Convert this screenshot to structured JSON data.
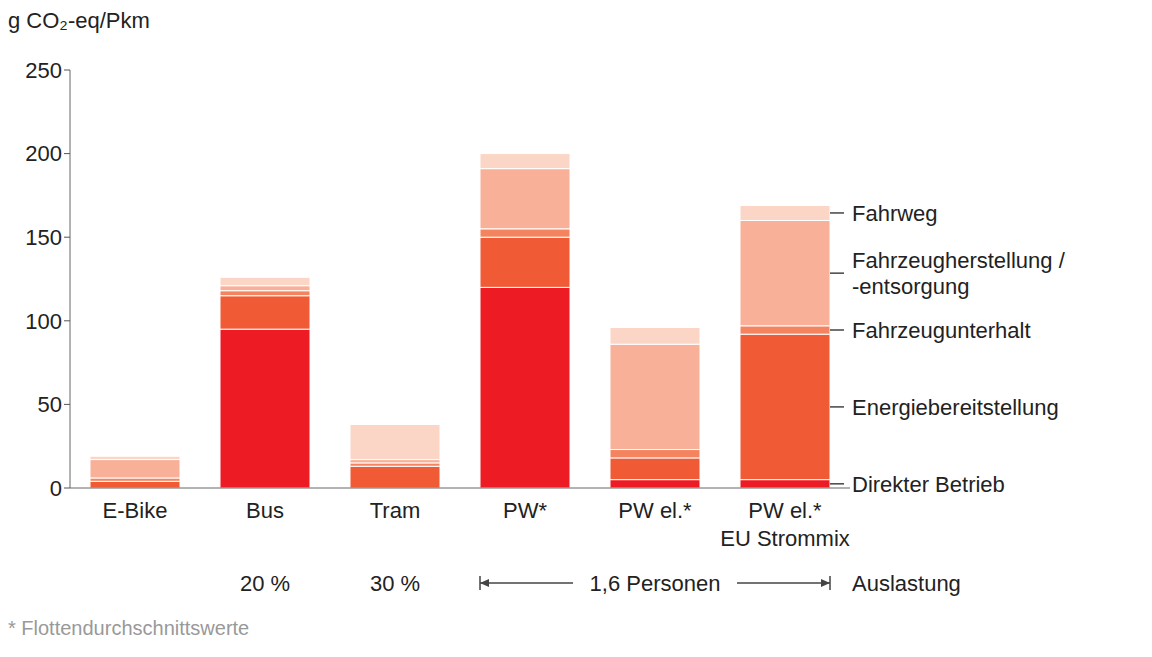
{
  "chart_data": {
    "type": "bar",
    "stacked": true,
    "y_label": "g CO₂-eq/Pkm",
    "categories": [
      "E-Bike",
      "Bus",
      "Tram",
      "PW*",
      "PW el.*",
      "PW el.* EU Strommix"
    ],
    "series": [
      {
        "name": "Direkter Betrieb",
        "color": "#ED1C24",
        "values": [
          0,
          95,
          0,
          120,
          5,
          5
        ]
      },
      {
        "name": "Energiebereitstellung",
        "color": "#F05A35",
        "values": [
          4,
          20,
          13,
          30,
          13,
          87
        ]
      },
      {
        "name": "Fahrzeugunterhalt",
        "color": "#F4845F",
        "values": [
          2,
          3,
          2,
          5,
          5,
          5
        ]
      },
      {
        "name": "Fahrzeugherstellung / -entsorgung",
        "color": "#F8B198",
        "values": [
          11,
          3,
          2,
          36,
          63,
          63
        ]
      },
      {
        "name": "Fahrweg",
        "color": "#FBD5C5",
        "values": [
          2,
          5,
          21,
          9,
          10,
          9
        ]
      }
    ],
    "ylim": [
      0,
      250
    ],
    "yticks": [
      0,
      50,
      100,
      150,
      200,
      250
    ],
    "grid": false,
    "occupancy_label": "Auslastung",
    "occupancy": [
      null,
      "20 %",
      "30 %",
      null,
      null,
      null
    ],
    "occupancy_group": {
      "label": "1,6 Personen",
      "from": "PW*",
      "to": "PW el.* EU Strommix"
    },
    "footnote": "* Flottendurchschnittswerte"
  }
}
